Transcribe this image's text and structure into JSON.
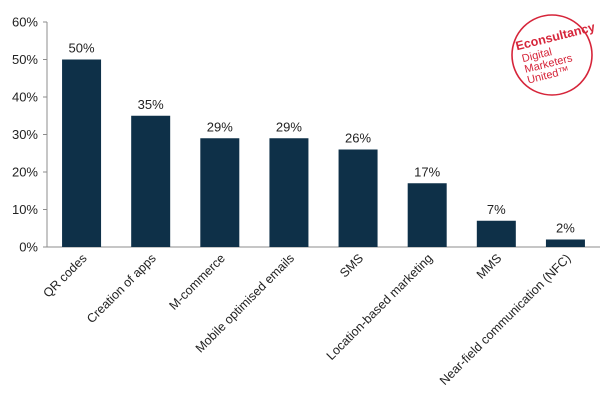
{
  "chart_data": {
    "type": "bar",
    "categories": [
      "QR codes",
      "Creation of apps",
      "M-commerce",
      "Mobile optimised emails",
      "SMS",
      "Location-based marketing",
      "MMS",
      "Near-field communication (NFC)"
    ],
    "values": [
      50,
      35,
      29,
      29,
      26,
      17,
      7,
      2
    ],
    "data_labels": [
      "50%",
      "35%",
      "29%",
      "29%",
      "26%",
      "17%",
      "7%",
      "2%"
    ],
    "yticks": [
      "0%",
      "10%",
      "20%",
      "30%",
      "40%",
      "50%",
      "60%"
    ],
    "ylim": [
      0,
      60
    ],
    "grid": false,
    "legend": "none",
    "bar_color": "#0e3048",
    "title": "",
    "xlabel": "",
    "ylabel": ""
  },
  "logo": {
    "name": "Econsultancy",
    "line1": "Digital",
    "line2": "Marketers",
    "line3": "United™",
    "color": "#d6253a"
  }
}
